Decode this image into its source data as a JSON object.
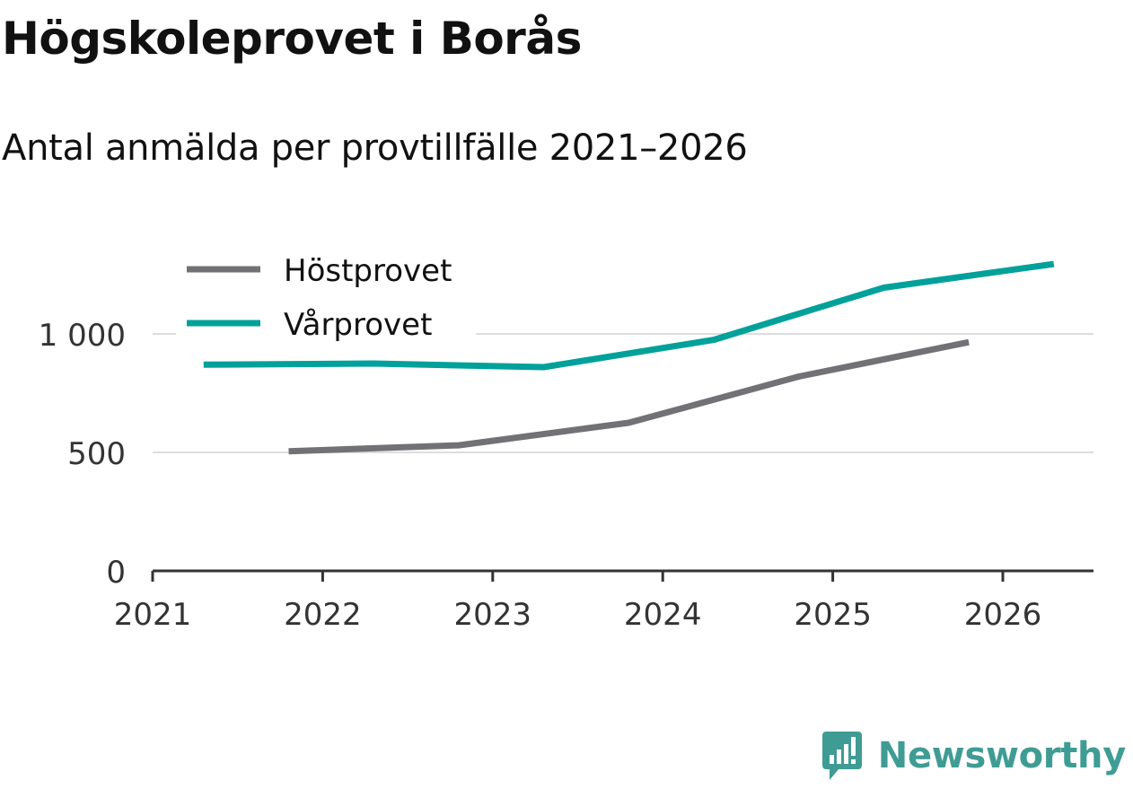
{
  "title": "Högskoleprovet i Borås",
  "subtitle": "Antal anmälda per provtillfälle 2021–2026",
  "brand": {
    "name": "Newsworthy",
    "icon": "newsworthy-logo-icon"
  },
  "colors": {
    "hostprovet": "#727176",
    "varprovet": "#00a19a",
    "grid": "#dddddd",
    "axis": "#333333",
    "brand": "#3f9c94"
  },
  "chart_data": {
    "type": "line",
    "title": "Högskoleprovet i Borås",
    "subtitle": "Antal anmälda per provtillfälle 2021–2026",
    "xlabel": "",
    "ylabel": "",
    "xlim": [
      2021,
      2026.5
    ],
    "ylim": [
      0,
      1000
    ],
    "yticks": [
      0,
      500,
      1000
    ],
    "ytick_labels": [
      "0",
      "500",
      "1 000"
    ],
    "xticks": [
      2021,
      2022,
      2023,
      2024,
      2025,
      2026
    ],
    "xtick_labels": [
      "2021",
      "2022",
      "2023",
      "2024",
      "2025",
      "2026"
    ],
    "grid": true,
    "legend_position": "top-left",
    "series": [
      {
        "name": "Höstprovet",
        "color": "#727176",
        "x": [
          2021.8,
          2022.8,
          2023.8,
          2024.8,
          2025.8
        ],
        "values": [
          505,
          530,
          625,
          820,
          965
        ]
      },
      {
        "name": "Vårprovet",
        "color": "#00a19a",
        "x": [
          2021.3,
          2022.3,
          2023.3,
          2024.3,
          2025.3,
          2026.3
        ],
        "values": [
          870,
          875,
          860,
          975,
          1195,
          1295
        ]
      }
    ]
  }
}
